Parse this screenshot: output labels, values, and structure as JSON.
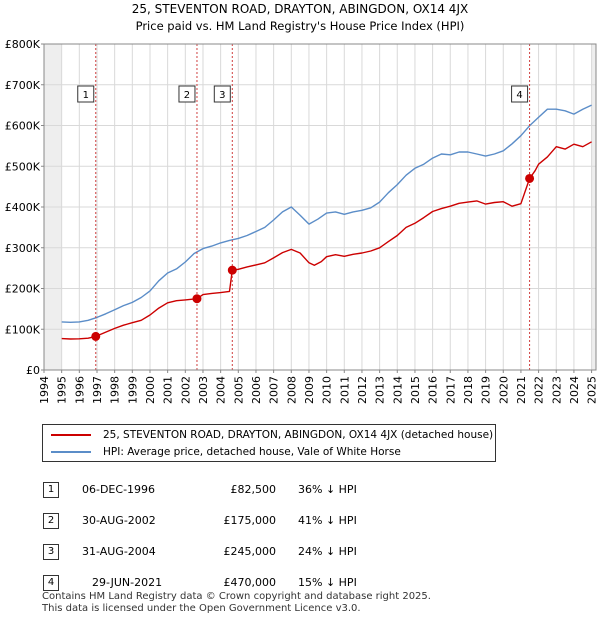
{
  "chart_data": {
    "type": "line",
    "title": "25, STEVENTON ROAD, DRAYTON, ABINGDON, OX14 4JX",
    "subtitle": "Price paid vs. HM Land Registry's House Price Index (HPI)",
    "xlabel": "",
    "ylabel": "",
    "xlim": [
      1994,
      2025.25
    ],
    "ylim": [
      0,
      800000
    ],
    "grid": true,
    "x_ticks": [
      1994,
      1995,
      1996,
      1997,
      1998,
      1999,
      2000,
      2001,
      2002,
      2003,
      2004,
      2005,
      2006,
      2007,
      2008,
      2009,
      2010,
      2011,
      2012,
      2013,
      2014,
      2015,
      2016,
      2017,
      2018,
      2019,
      2020,
      2021,
      2022,
      2023,
      2024,
      2025
    ],
    "y_ticks": [
      {
        "value": 0,
        "label": "£0"
      },
      {
        "value": 100000,
        "label": "£100K"
      },
      {
        "value": 200000,
        "label": "£200K"
      },
      {
        "value": 300000,
        "label": "£300K"
      },
      {
        "value": 400000,
        "label": "£400K"
      },
      {
        "value": 500000,
        "label": "£500K"
      },
      {
        "value": 600000,
        "label": "£600K"
      },
      {
        "value": 700000,
        "label": "£700K"
      },
      {
        "value": 800000,
        "label": "£800K"
      }
    ],
    "shaded_ranges": [
      [
        1994,
        1995
      ],
      [
        2025,
        2025.25
      ]
    ],
    "series": [
      {
        "name": "25, STEVENTON ROAD, DRAYTON, ABINGDON, OX14 4JX (detached house)",
        "color": "#cc0000",
        "x": [
          1995.0,
          1995.5,
          1996.0,
          1996.5,
          1996.93,
          1997.5,
          1998.0,
          1998.5,
          1999.0,
          1999.5,
          2000.0,
          2000.5,
          2001.0,
          2001.5,
          2002.0,
          2002.66,
          2003.0,
          2003.5,
          2004.0,
          2004.5,
          2004.66,
          2005.0,
          2005.5,
          2006.0,
          2006.5,
          2007.0,
          2007.5,
          2008.0,
          2008.5,
          2009.0,
          2009.3,
          2009.7,
          2010.0,
          2010.5,
          2011.0,
          2011.5,
          2012.0,
          2012.5,
          2013.0,
          2013.5,
          2014.0,
          2014.5,
          2015.0,
          2015.5,
          2016.0,
          2016.5,
          2017.0,
          2017.5,
          2018.0,
          2018.5,
          2019.0,
          2019.5,
          2020.0,
          2020.5,
          2021.0,
          2021.49,
          2021.8,
          2022.0,
          2022.5,
          2023.0,
          2023.5,
          2024.0,
          2024.5,
          2025.0
        ],
        "values": [
          77000,
          76000,
          76500,
          78000,
          82500,
          93000,
          102000,
          110000,
          116000,
          122000,
          135000,
          152000,
          165000,
          170000,
          172000,
          175000,
          185000,
          188000,
          190000,
          193000,
          245000,
          247000,
          253000,
          258000,
          263000,
          275000,
          288000,
          296000,
          287000,
          263000,
          257000,
          266000,
          278000,
          283000,
          279000,
          284000,
          287000,
          292000,
          300000,
          315000,
          330000,
          350000,
          360000,
          374000,
          389000,
          396000,
          402000,
          409000,
          412000,
          415000,
          407000,
          411000,
          413000,
          402000,
          408000,
          470000,
          489000,
          505000,
          523000,
          548000,
          542000,
          554000,
          548000,
          560000
        ]
      },
      {
        "name": "HPI: Average price, detached house, Vale of White Horse",
        "color": "#5b8dc8",
        "x": [
          1995.0,
          1995.5,
          1996.0,
          1996.5,
          1997.0,
          1997.5,
          1998.0,
          1998.5,
          1999.0,
          1999.5,
          2000.0,
          2000.5,
          2001.0,
          2001.5,
          2002.0,
          2002.5,
          2003.0,
          2003.5,
          2004.0,
          2004.5,
          2005.0,
          2005.5,
          2006.0,
          2006.5,
          2007.0,
          2007.5,
          2008.0,
          2008.5,
          2009.0,
          2009.5,
          2010.0,
          2010.5,
          2011.0,
          2011.5,
          2012.0,
          2012.5,
          2013.0,
          2013.5,
          2014.0,
          2014.5,
          2015.0,
          2015.5,
          2016.0,
          2016.5,
          2017.0,
          2017.5,
          2018.0,
          2018.5,
          2019.0,
          2019.5,
          2020.0,
          2020.5,
          2021.0,
          2021.5,
          2022.0,
          2022.5,
          2023.0,
          2023.5,
          2024.0,
          2024.5,
          2025.0
        ],
        "values": [
          118000,
          117000,
          118000,
          122000,
          129000,
          138000,
          148000,
          158000,
          166000,
          178000,
          194000,
          219000,
          238000,
          248000,
          265000,
          286000,
          298000,
          304000,
          312000,
          318000,
          323000,
          330000,
          340000,
          350000,
          368000,
          388000,
          400000,
          380000,
          358000,
          370000,
          385000,
          388000,
          382000,
          388000,
          392000,
          398000,
          412000,
          435000,
          455000,
          478000,
          495000,
          505000,
          520000,
          530000,
          528000,
          535000,
          535000,
          530000,
          525000,
          530000,
          538000,
          555000,
          575000,
          600000,
          620000,
          640000,
          640000,
          636000,
          628000,
          640000,
          650000
        ]
      }
    ],
    "annotations": [
      {
        "label": "1",
        "x": 1996.93,
        "y": 82500
      },
      {
        "label": "2",
        "x": 2002.66,
        "y": 175000
      },
      {
        "label": "3",
        "x": 2004.66,
        "y": 245000
      },
      {
        "label": "4",
        "x": 2021.49,
        "y": 470000
      }
    ]
  },
  "legend": {
    "items": [
      {
        "label": "25, STEVENTON ROAD, DRAYTON, ABINGDON, OX14 4JX (detached house)",
        "color": "#cc0000"
      },
      {
        "label": "HPI: Average price, detached house, Vale of White Horse",
        "color": "#5b8dc8"
      }
    ]
  },
  "sales": [
    {
      "num": "1",
      "date": "06-DEC-1996",
      "price": "£82,500",
      "hpi": "36% ↓ HPI"
    },
    {
      "num": "2",
      "date": "30-AUG-2002",
      "price": "£175,000",
      "hpi": "41% ↓ HPI"
    },
    {
      "num": "3",
      "date": "31-AUG-2004",
      "price": "£245,000",
      "hpi": "24% ↓ HPI"
    },
    {
      "num": "4",
      "date": "29-JUN-2021",
      "price": "£470,000",
      "hpi": "15% ↓ HPI"
    }
  ],
  "footer": {
    "line1": "Contains HM Land Registry data © Crown copyright and database right 2025.",
    "line2": "This data is licensed under the Open Government Licence v3.0."
  }
}
